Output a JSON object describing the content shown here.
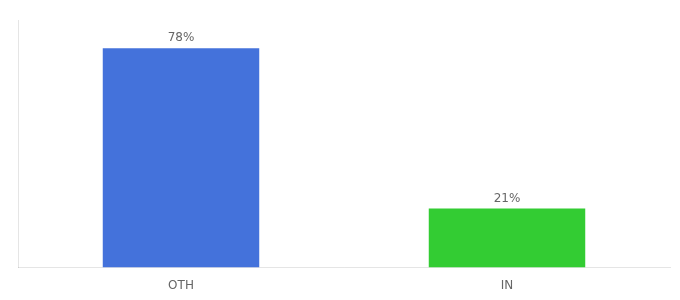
{
  "chart_data": {
    "type": "bar",
    "categories": [
      "OTH",
      "IN"
    ],
    "values": [
      78,
      21
    ],
    "value_labels": [
      "78%",
      "21%"
    ],
    "colors": [
      "#4472db",
      "#33cc33"
    ],
    "ylim": [
      0,
      88
    ],
    "yticks": [],
    "grid": false,
    "data_labels": true,
    "tick_labels": "x"
  }
}
